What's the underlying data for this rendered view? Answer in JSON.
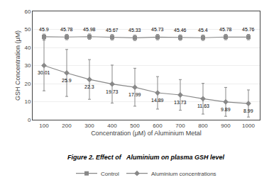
{
  "chart_data": {
    "type": "line",
    "title": "Figure 2. Effect of   Aluminium on plasma GSH level",
    "x_label": "Concentration (μM) of Aluminium Metal",
    "y_label": "GSH Concentration (μM)",
    "x": [
      100,
      200,
      300,
      400,
      500,
      600,
      700,
      800,
      900,
      1000
    ],
    "series": [
      {
        "name": "Control",
        "color": "#888888",
        "marker": "square",
        "line_style": "solid",
        "values": [
          45.9,
          45.78,
          45.98,
          45.67,
          45.33,
          45.73,
          45.46,
          45.4,
          45.78,
          45.76
        ],
        "yerr": [
          1.5,
          1.5,
          1.5,
          1.5,
          1.5,
          1.5,
          1.5,
          1.5,
          1.5,
          1.5
        ]
      },
      {
        "name": "Aluminium concentrations",
        "color": "#888888",
        "marker": "diamond",
        "line_style": "solid",
        "values": [
          30.01,
          25.9,
          22.3,
          19.73,
          17.99,
          14.89,
          13.73,
          11.63,
          9.89,
          8.99
        ],
        "yerr": [
          14.0,
          13.0,
          11.0,
          10.5,
          10.5,
          9.0,
          8.5,
          8.5,
          8.0,
          7.5
        ]
      }
    ],
    "xlim": [
      50,
      1050
    ],
    "xticks": [
      100,
      200,
      300,
      400,
      500,
      600,
      700,
      800,
      900,
      1000
    ],
    "ylim": [
      0,
      60
    ],
    "yticks": [
      0,
      10,
      20,
      30,
      40,
      50,
      60
    ],
    "grid": true,
    "legend": "bottom",
    "data_labels": true
  }
}
